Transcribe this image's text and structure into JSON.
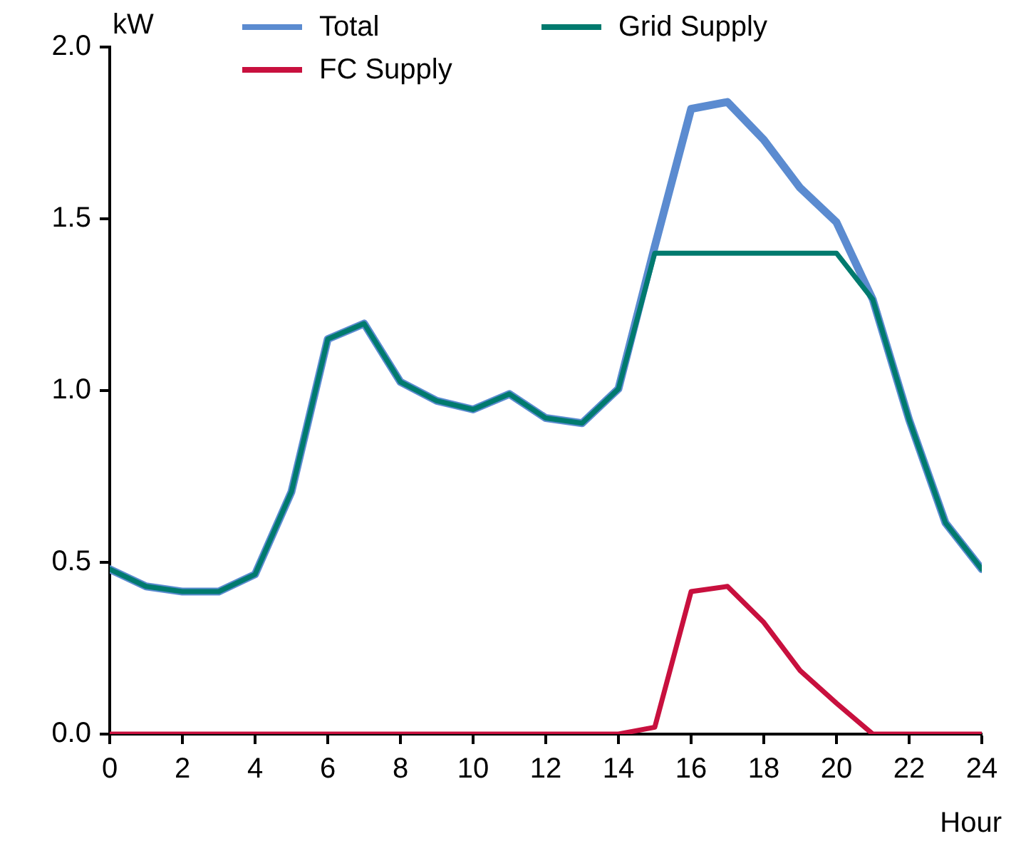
{
  "chart_data": {
    "type": "line",
    "xlabel": "Hour",
    "ylabel": "kW",
    "x": [
      0,
      1,
      2,
      3,
      4,
      5,
      6,
      7,
      8,
      9,
      10,
      11,
      12,
      13,
      14,
      15,
      16,
      17,
      18,
      19,
      20,
      21,
      22,
      23,
      24
    ],
    "series": [
      {
        "name": "Total",
        "color": "#5b8bd0",
        "values": [
          0.48,
          0.43,
          0.415,
          0.415,
          0.465,
          0.705,
          1.15,
          1.195,
          1.025,
          0.97,
          0.945,
          0.99,
          0.92,
          0.905,
          1.005,
          1.42,
          1.82,
          1.84,
          1.73,
          1.59,
          1.49,
          1.265,
          0.915,
          0.615,
          0.48
        ]
      },
      {
        "name": "Grid Supply",
        "color": "#007a6e",
        "values": [
          0.48,
          0.43,
          0.415,
          0.415,
          0.465,
          0.705,
          1.15,
          1.195,
          1.025,
          0.97,
          0.945,
          0.99,
          0.92,
          0.905,
          1.005,
          1.4,
          1.4,
          1.4,
          1.4,
          1.4,
          1.4,
          1.265,
          0.915,
          0.615,
          0.48
        ]
      },
      {
        "name": "FC Supply",
        "color": "#c8103e",
        "values": [
          0,
          0,
          0,
          0,
          0,
          0,
          0,
          0,
          0,
          0,
          0,
          0,
          0,
          0,
          0,
          0.02,
          0.415,
          0.43,
          0.325,
          0.185,
          0.09,
          0,
          0,
          0,
          0
        ]
      }
    ],
    "xlim": [
      0,
      24
    ],
    "xticks": [
      0,
      2,
      4,
      6,
      8,
      10,
      12,
      14,
      16,
      18,
      20,
      22,
      24
    ],
    "ylim": [
      0,
      2
    ],
    "yticks": [
      {
        "value": 0,
        "label": "0.0"
      },
      {
        "value": 0.5,
        "label": "0.5"
      },
      {
        "value": 1,
        "label": "1.0"
      },
      {
        "value": 1.5,
        "label": "1.5"
      },
      {
        "value": 2,
        "label": "2.0"
      }
    ],
    "grid": false,
    "legend": "top",
    "marker": "none",
    "line_style": "solid"
  }
}
